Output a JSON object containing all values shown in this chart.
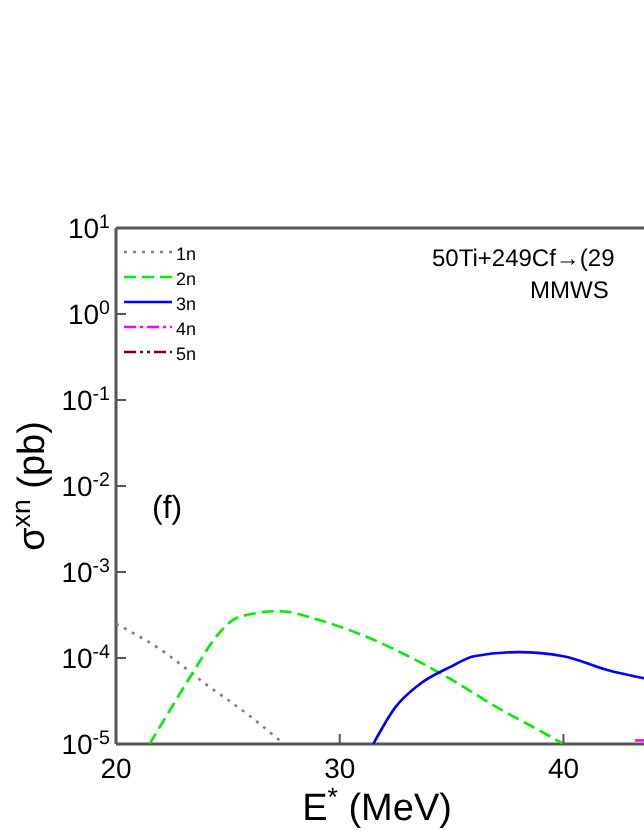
{
  "chart_data": {
    "type": "line",
    "xlabel": "E$^{*}$ (MeV)",
    "ylabel": "σ$^{xn}$ (pb)",
    "log": "y",
    "xlim": [
      20,
      43.6
    ],
    "xticks": [
      20,
      30,
      40
    ],
    "ylim": [
      1e-05,
      10
    ],
    "yticks": [
      {
        "value": 10,
        "label": "10$^{1}$"
      },
      {
        "value": 1,
        "label": "10$^{0}$"
      },
      {
        "value": 0.1,
        "label": "10$^{-1}$"
      },
      {
        "value": 0.01,
        "label": "10$^{-2}$"
      },
      {
        "value": 0.001,
        "label": "10$^{-3}$"
      },
      {
        "value": 0.0001,
        "label": "10$^{-4}$"
      },
      {
        "value": 1e-05,
        "label": "10$^{-5}$"
      }
    ],
    "legend": "top left",
    "grid": false,
    "annotations": [
      "50Ti+249Cf→(29",
      "MMWS",
      "(f)"
    ],
    "series": [
      {
        "name": "1n",
        "color": "#808080",
        "line_style": "dotted",
        "x": [
          20,
          22,
          24,
          26,
          27.5
        ],
        "values": [
          0.00025,
          0.000125,
          5e-05,
          2.1e-05,
          1e-05
        ]
      },
      {
        "name": "2n",
        "color": "#00ee00",
        "line_style": "dashed",
        "x": [
          21.5,
          22.5,
          23.5,
          24.5,
          25.5,
          27.3,
          29,
          31,
          33,
          35,
          37,
          39,
          40
        ],
        "values": [
          1e-05,
          2.7e-05,
          7.2e-05,
          0.00018,
          0.0003,
          0.00035,
          0.00028,
          0.000185,
          0.000107,
          5.6e-05,
          2.7e-05,
          1.4e-05,
          1e-05
        ]
      },
      {
        "name": "3n",
        "color": "#0000ff",
        "line_style": "solid",
        "x": [
          31.5,
          32.5,
          33.5,
          35,
          36,
          38,
          40,
          42,
          43.6
        ],
        "values": [
          1e-05,
          2.7e-05,
          4.8e-05,
          8e-05,
          0.000105,
          0.000117,
          0.000105,
          7.2e-05,
          5.8e-05
        ]
      },
      {
        "name": "4n",
        "color": "#ff00ff",
        "line_style": "dashdot",
        "x": [
          43.2,
          43.6
        ],
        "values": [
          1.1e-05,
          1.1e-05
        ]
      },
      {
        "name": "5n",
        "color": "#800000",
        "line_style": "dashdotdot"
      }
    ]
  }
}
